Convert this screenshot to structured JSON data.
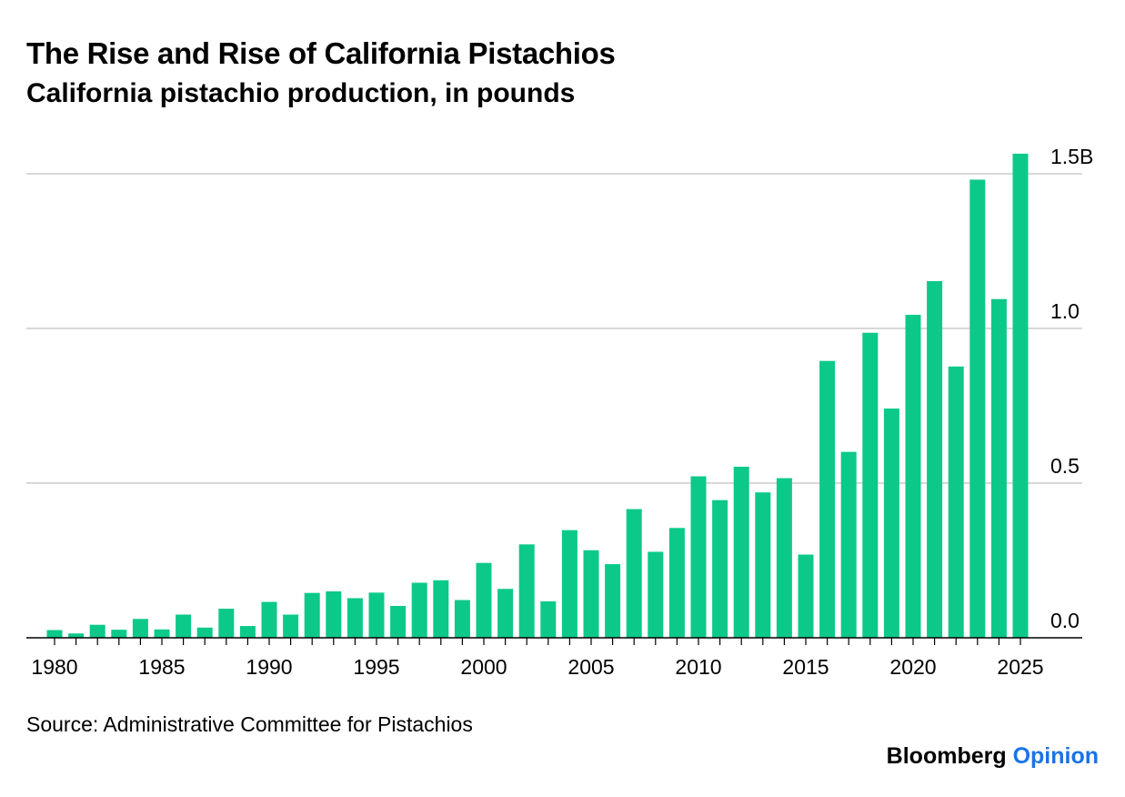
{
  "title": "The Rise and Rise of California Pistachios",
  "subtitle": "California pistachio production, in pounds",
  "source": "Source: Administrative Committee for Pistachios",
  "brand": {
    "name": "Bloomberg",
    "section": "Opinion"
  },
  "colors": {
    "bar": "#0cc98a",
    "grid": "#cccccc",
    "axis": "#000000",
    "accent": "#1a73e8"
  },
  "chart_data": {
    "type": "bar",
    "categories": [
      1980,
      1981,
      1982,
      1983,
      1984,
      1985,
      1986,
      1987,
      1988,
      1989,
      1990,
      1991,
      1992,
      1993,
      1994,
      1995,
      1996,
      1997,
      1998,
      1999,
      2000,
      2001,
      2002,
      2003,
      2004,
      2005,
      2006,
      2007,
      2008,
      2009,
      2010,
      2011,
      2012,
      2013,
      2014,
      2015,
      2016,
      2017,
      2018,
      2019,
      2020,
      2021,
      2022,
      2023,
      2024,
      2025
    ],
    "values": [
      0.025,
      0.014,
      0.042,
      0.026,
      0.061,
      0.027,
      0.075,
      0.033,
      0.094,
      0.038,
      0.116,
      0.075,
      0.145,
      0.15,
      0.128,
      0.146,
      0.103,
      0.178,
      0.186,
      0.122,
      0.242,
      0.158,
      0.302,
      0.118,
      0.348,
      0.283,
      0.238,
      0.416,
      0.278,
      0.355,
      0.522,
      0.445,
      0.553,
      0.47,
      0.516,
      0.269,
      0.895,
      0.601,
      0.986,
      0.741,
      1.044,
      1.153,
      0.877,
      1.481,
      1.095,
      1.565
    ],
    "ylim": [
      0,
      1.5
    ],
    "yticks": [
      0.0,
      0.5,
      1.0,
      1.5
    ],
    "ytick_labels": [
      "0.0",
      "0.5",
      "1.0",
      "1.5B"
    ],
    "xtick_labels": [
      "1980",
      "1985",
      "1990",
      "1995",
      "2000",
      "2005",
      "2010",
      "2015",
      "2020",
      "2025"
    ],
    "xlabel": "",
    "ylabel": "",
    "grid": true,
    "y_axis_side": "right"
  }
}
